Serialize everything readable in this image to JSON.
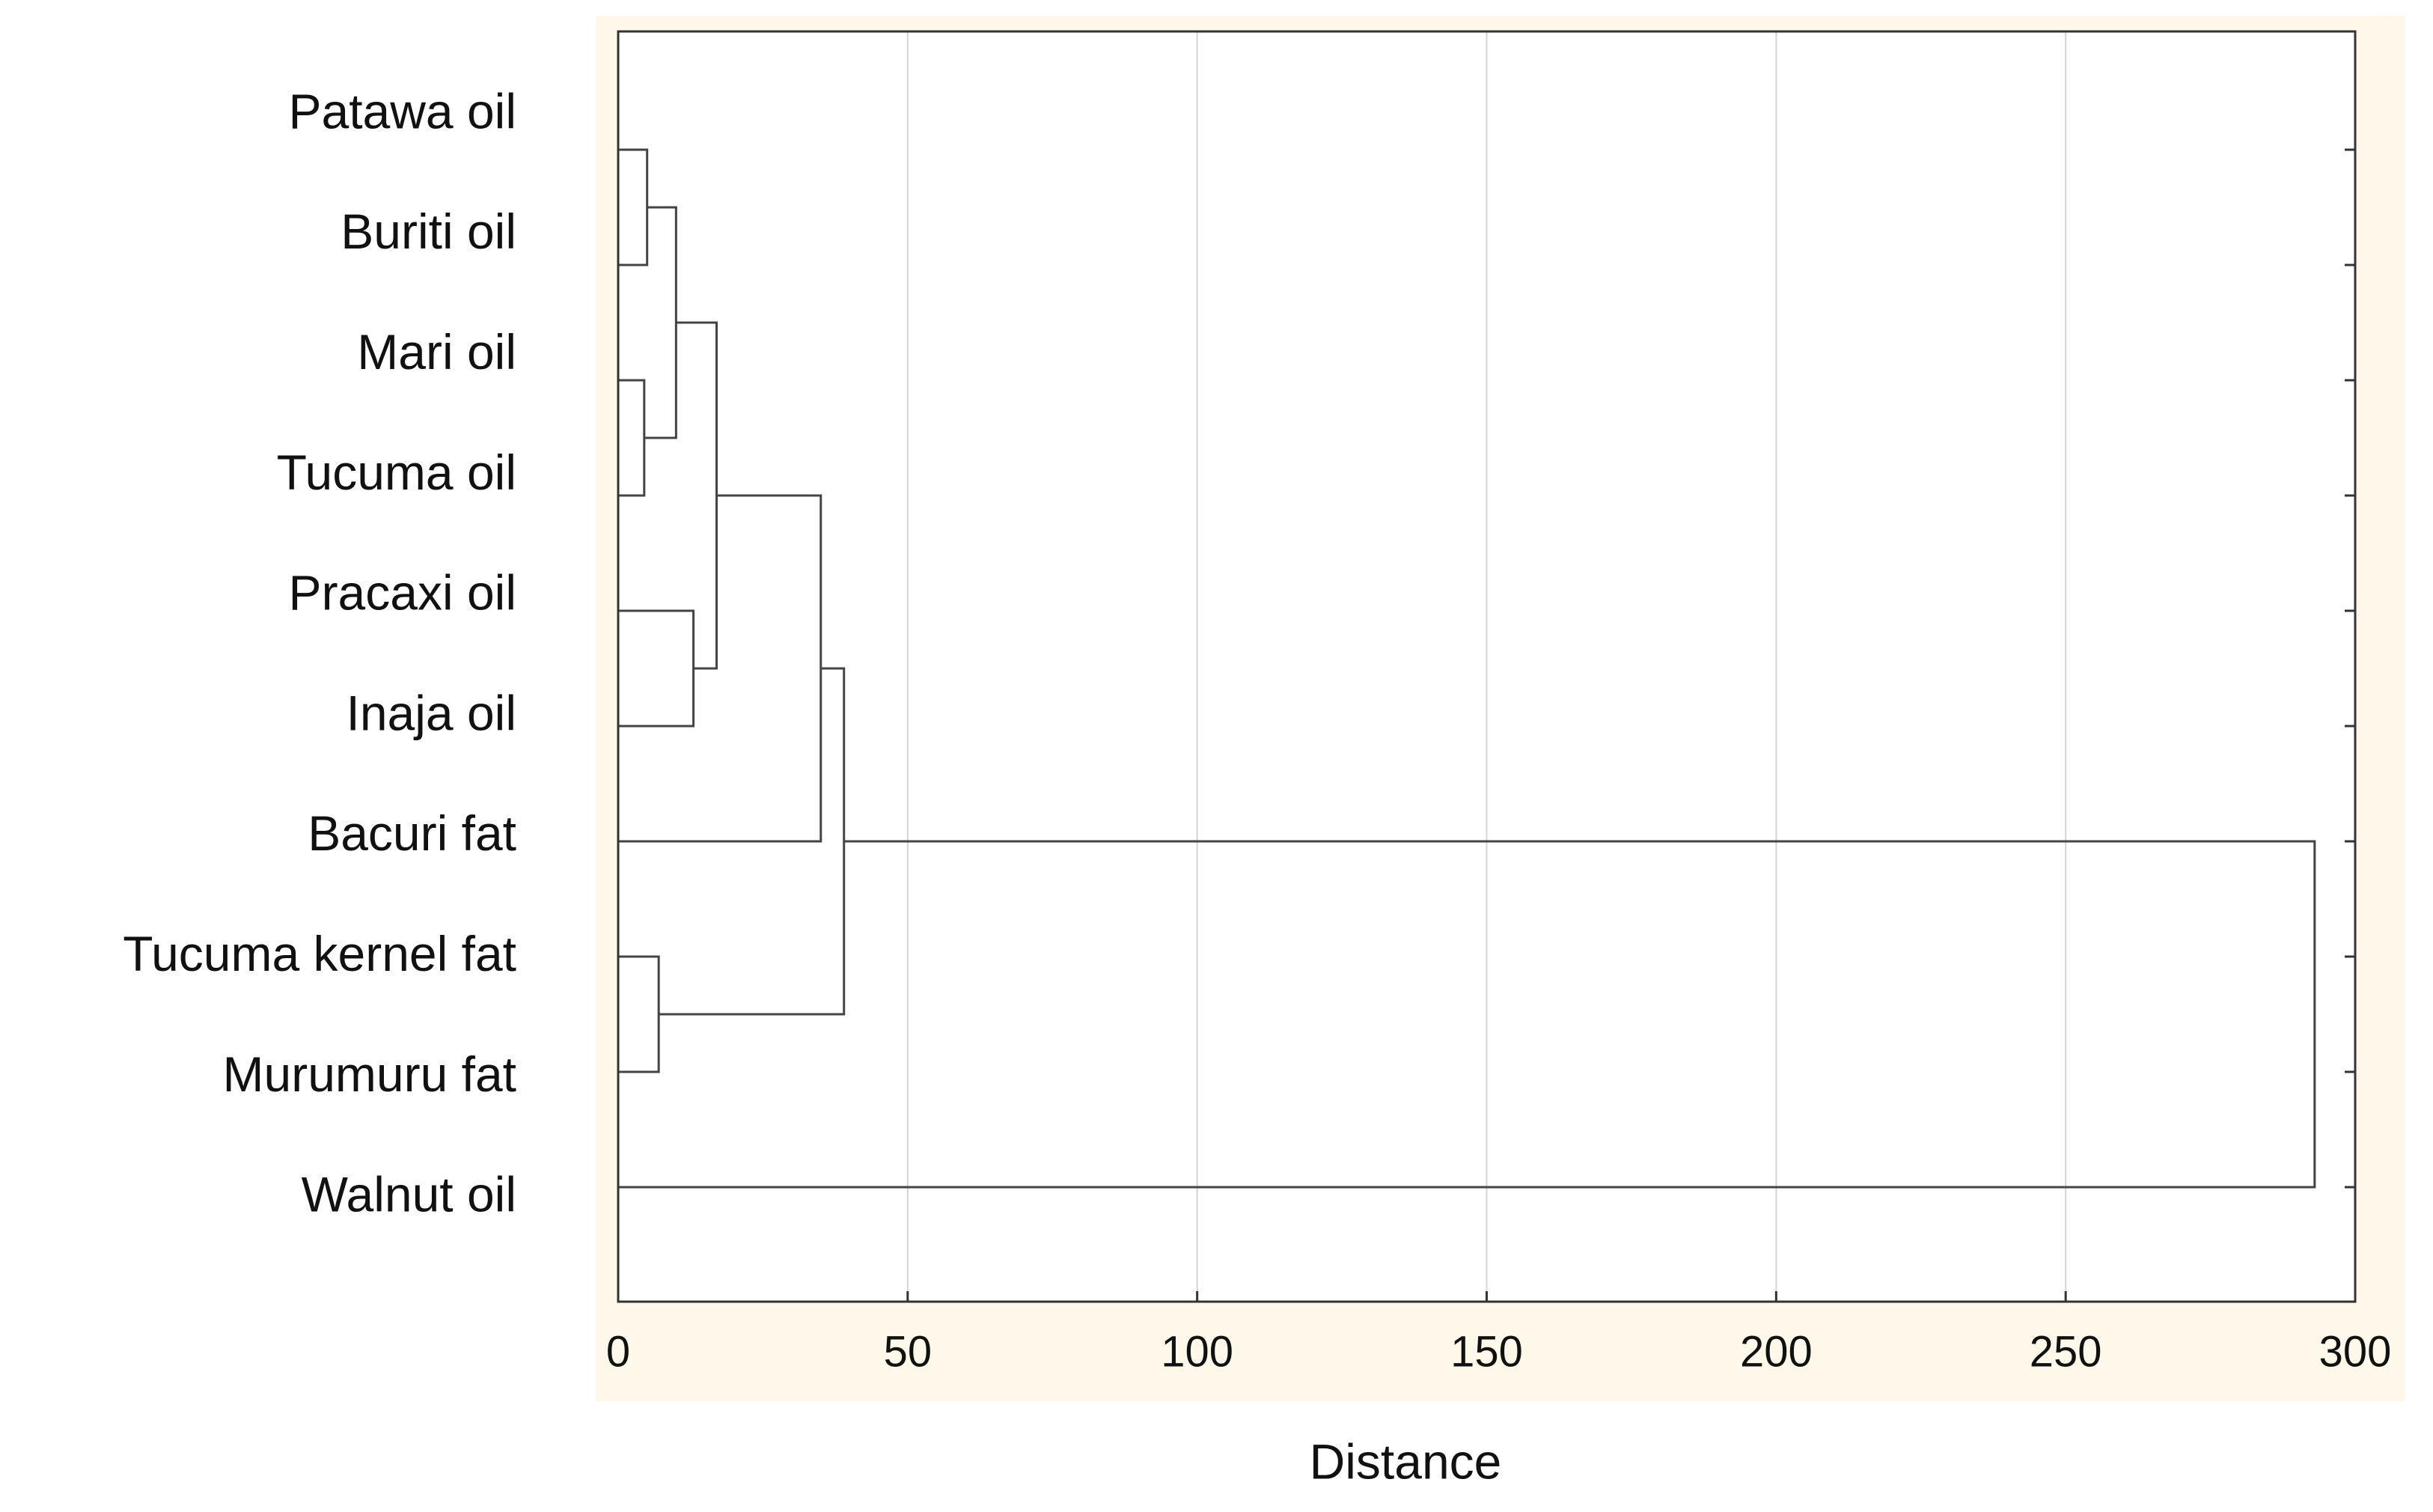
{
  "chart_data": {
    "type": "dendrogram",
    "xlabel": "Distance",
    "xlim": [
      0,
      300
    ],
    "xticks": [
      0,
      50,
      100,
      150,
      200,
      250,
      300
    ],
    "grid": true,
    "color": "#444444",
    "tree": {
      "distance": 293,
      "children": [
        {
          "distance": 39,
          "children": [
            {
              "distance": 35,
              "children": [
                {
                  "distance": 17,
                  "children": [
                    {
                      "distance": 10,
                      "children": [
                        {
                          "distance": 5,
                          "children": [
                            "Patawa oil",
                            "Buriti oil"
                          ]
                        },
                        {
                          "distance": 4.5,
                          "children": [
                            "Mari oil",
                            "Tucuma oil"
                          ]
                        }
                      ]
                    },
                    {
                      "distance": 13,
                      "children": [
                        "Pracaxi oil",
                        "Inaja oil"
                      ]
                    }
                  ]
                },
                "Bacuri fat"
              ]
            },
            {
              "distance": 7,
              "children": [
                "Tucuma kernel fat",
                "Murumuru fat"
              ]
            }
          ]
        },
        "Walnut oil"
      ]
    }
  }
}
